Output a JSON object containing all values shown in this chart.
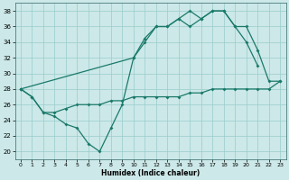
{
  "xlabel": "Humidex (Indice chaleur)",
  "bg_color": "#cce8e8",
  "grid_color": "#99cccc",
  "line_color": "#1a7a6a",
  "xlim": [
    -0.5,
    23.5
  ],
  "ylim": [
    19.0,
    39.0
  ],
  "yticks": [
    20,
    22,
    24,
    26,
    28,
    30,
    32,
    34,
    36,
    38
  ],
  "xticks": [
    0,
    1,
    2,
    3,
    4,
    5,
    6,
    7,
    8,
    9,
    10,
    11,
    12,
    13,
    14,
    15,
    16,
    17,
    18,
    19,
    20,
    21,
    22,
    23
  ],
  "line1_x": [
    0,
    1,
    2,
    3,
    4,
    5,
    6,
    7,
    8,
    9,
    10,
    11,
    12,
    13,
    14,
    15,
    16,
    17,
    18,
    19,
    20,
    21,
    22,
    23
  ],
  "line1_y": [
    28,
    27,
    25,
    25,
    25.5,
    26,
    26,
    26,
    26.5,
    26.5,
    27,
    27,
    27,
    27,
    27,
    27.5,
    27.5,
    28,
    28,
    28,
    28,
    28,
    28,
    29
  ],
  "line2_x": [
    0,
    1,
    2,
    3,
    4,
    5,
    6,
    7,
    8,
    9,
    10,
    11,
    12,
    13,
    14,
    15,
    16,
    17,
    18,
    19,
    20,
    21,
    22,
    23
  ],
  "line2_y": [
    28,
    27,
    25,
    24.5,
    23.5,
    23,
    21,
    20,
    23,
    26,
    32,
    34.5,
    36,
    36,
    37,
    36,
    37,
    38,
    38,
    36,
    34,
    31,
    null,
    null
  ],
  "line3_x": [
    0,
    10,
    11,
    12,
    13,
    14,
    15,
    16,
    17,
    18,
    19,
    20,
    21,
    22,
    23
  ],
  "line3_y": [
    28,
    32,
    34,
    36,
    36,
    37,
    38,
    37,
    38,
    38,
    36,
    36,
    33,
    29,
    29
  ]
}
